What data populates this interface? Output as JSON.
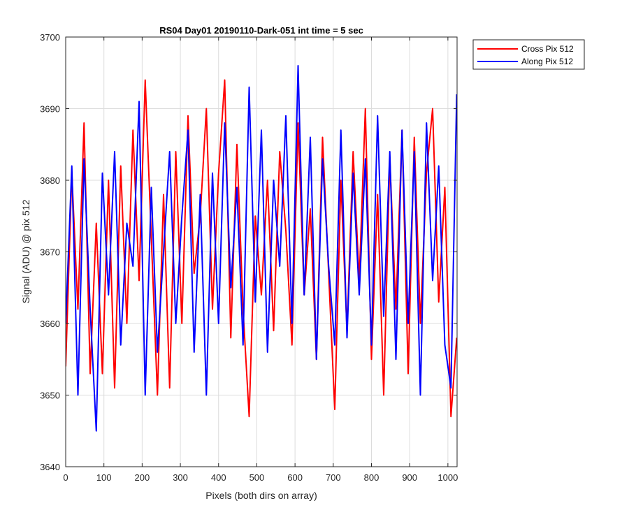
{
  "chart_data": {
    "type": "line",
    "title": "RS04 Day01 20190110-Dark-051 int time = 5 sec",
    "xlabel": "Pixels (both dirs on array)",
    "ylabel": "Signal (ADU) @ pix 512",
    "xlim": [
      0,
      1024
    ],
    "ylim": [
      3640,
      3700
    ],
    "x_ticks": [
      "0",
      "100",
      "200",
      "300",
      "400",
      "500",
      "600",
      "700",
      "800",
      "900",
      "1000"
    ],
    "y_ticks": [
      "3640",
      "3650",
      "3660",
      "3670",
      "3680",
      "3690",
      "3700"
    ],
    "grid": true,
    "legend_position": "outside top-right",
    "x": [
      0,
      16,
      32,
      48,
      64,
      80,
      96,
      112,
      128,
      144,
      160,
      176,
      192,
      208,
      224,
      240,
      256,
      272,
      288,
      304,
      320,
      336,
      352,
      368,
      384,
      400,
      416,
      432,
      448,
      464,
      480,
      496,
      512,
      528,
      544,
      560,
      576,
      592,
      608,
      624,
      640,
      656,
      672,
      688,
      704,
      720,
      736,
      752,
      768,
      784,
      800,
      816,
      832,
      848,
      864,
      880,
      896,
      912,
      928,
      944,
      960,
      976,
      992,
      1008,
      1023
    ],
    "series": [
      {
        "name": "Cross Pix 512",
        "color": "#ff0000",
        "values": [
          3654,
          3681,
          3662,
          3688,
          3653,
          3674,
          3653,
          3680,
          3651,
          3682,
          3660,
          3687,
          3666,
          3694,
          3672,
          3650,
          3678,
          3651,
          3684,
          3660,
          3689,
          3667,
          3675,
          3690,
          3662,
          3681,
          3694,
          3658,
          3685,
          3662,
          3647,
          3675,
          3664,
          3680,
          3659,
          3684,
          3673,
          3657,
          3688,
          3664,
          3676,
          3655,
          3686,
          3667,
          3648,
          3680,
          3659,
          3684,
          3666,
          3690,
          3655,
          3678,
          3650,
          3683,
          3662,
          3687,
          3653,
          3686,
          3660,
          3681,
          3690,
          3663,
          3679,
          3647,
          3658
        ]
      },
      {
        "name": "Along Pix 512",
        "color": "#0000ff",
        "values": [
          3660,
          3682,
          3650,
          3683,
          3662,
          3645,
          3681,
          3664,
          3684,
          3657,
          3674,
          3668,
          3691,
          3650,
          3679,
          3656,
          3670,
          3684,
          3660,
          3675,
          3687,
          3656,
          3678,
          3650,
          3681,
          3660,
          3688,
          3665,
          3679,
          3657,
          3693,
          3663,
          3687,
          3656,
          3680,
          3668,
          3689,
          3660,
          3696,
          3664,
          3686,
          3655,
          3683,
          3668,
          3657,
          3687,
          3658,
          3681,
          3664,
          3683,
          3657,
          3689,
          3661,
          3684,
          3655,
          3687,
          3660,
          3684,
          3650,
          3688,
          3666,
          3682,
          3657,
          3651,
          3692
        ]
      }
    ]
  }
}
